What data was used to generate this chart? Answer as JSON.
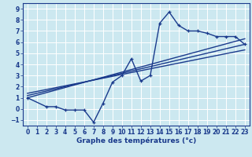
{
  "background_color": "#cce8f0",
  "grid_color": "#ffffff",
  "line_color": "#1a3a8c",
  "xlabel": "Graphe des températures (°c)",
  "xlim": [
    -0.5,
    23.5
  ],
  "ylim": [
    -1.5,
    9.5
  ],
  "yticks": [
    -1,
    0,
    1,
    2,
    3,
    4,
    5,
    6,
    7,
    8,
    9
  ],
  "xticks": [
    0,
    1,
    2,
    3,
    4,
    5,
    6,
    7,
    8,
    9,
    10,
    11,
    12,
    13,
    14,
    15,
    16,
    17,
    18,
    19,
    20,
    21,
    22,
    23
  ],
  "curve1_x": [
    0,
    2,
    3,
    4,
    5,
    6,
    7,
    8,
    9,
    10,
    11,
    12,
    13,
    14,
    15,
    16,
    17,
    18,
    19,
    20,
    21,
    22,
    23
  ],
  "curve1_y": [
    1.0,
    0.2,
    0.2,
    -0.1,
    -0.1,
    -0.1,
    -1.2,
    0.5,
    2.4,
    3.0,
    4.5,
    2.5,
    3.0,
    7.7,
    8.7,
    7.5,
    7.0,
    7.0,
    6.8,
    6.5,
    6.5,
    6.5,
    5.8
  ],
  "line2_x": [
    0,
    23
  ],
  "line2_y": [
    1.0,
    6.3
  ],
  "line3_x": [
    0,
    23
  ],
  "line3_y": [
    1.2,
    5.8
  ],
  "line4_x": [
    0,
    23
  ],
  "line4_y": [
    1.4,
    5.3
  ],
  "tick_fontsize": 5.5,
  "xlabel_fontsize": 6.5,
  "linewidth": 1.0
}
